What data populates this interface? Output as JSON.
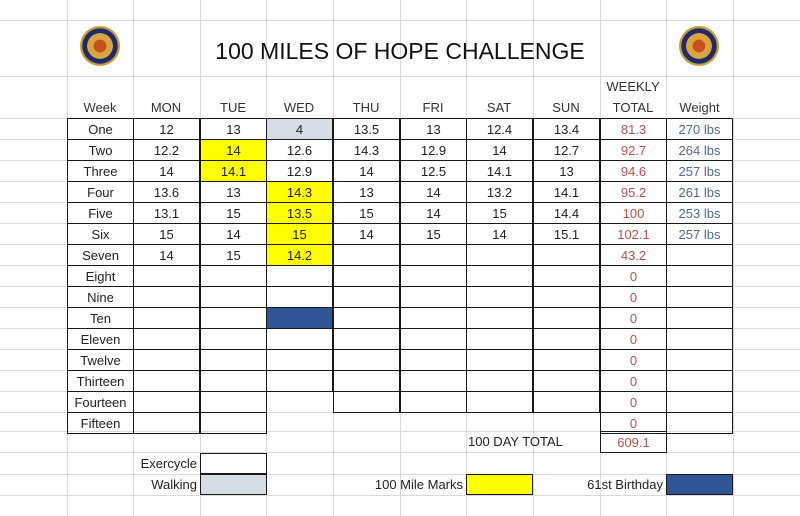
{
  "title": "100 MILES OF HOPE CHALLENGE",
  "logos": [
    "american-legion-emblem-left",
    "american-legion-emblem-right"
  ],
  "headers": {
    "week": "Week",
    "days": [
      "MON",
      "TUE",
      "WED",
      "THU",
      "FRI",
      "SAT",
      "SUN"
    ],
    "weekly_line1": "WEEKLY",
    "weekly_line2": "TOTAL",
    "weight": "Weight"
  },
  "rows": [
    {
      "week": "One",
      "days": [
        "12",
        "13",
        "4",
        "13.5",
        "13",
        "12.4",
        "13.4"
      ],
      "total": "81.3",
      "weight": "270 lbs"
    },
    {
      "week": "Two",
      "days": [
        "12.2",
        "14",
        "12.6",
        "14.3",
        "12.9",
        "14",
        "12.7"
      ],
      "total": "92.7",
      "weight": "264 lbs"
    },
    {
      "week": "Three",
      "days": [
        "14",
        "14.1",
        "12.9",
        "14",
        "12.5",
        "14.1",
        "13"
      ],
      "total": "94.6",
      "weight": "257 lbs"
    },
    {
      "week": "Four",
      "days": [
        "13.6",
        "13",
        "14.3",
        "13",
        "14",
        "13.2",
        "14.1"
      ],
      "total": "95.2",
      "weight": "261 lbs"
    },
    {
      "week": "Five",
      "days": [
        "13.1",
        "15",
        "13.5",
        "15",
        "14",
        "15",
        "14.4"
      ],
      "total": "100",
      "weight": "253 lbs"
    },
    {
      "week": "Six",
      "days": [
        "15",
        "14",
        "15",
        "14",
        "15",
        "14",
        "15.1"
      ],
      "total": "102.1",
      "weight": "257 lbs"
    },
    {
      "week": "Seven",
      "days": [
        "14",
        "15",
        "14.2",
        "",
        "",
        "",
        ""
      ],
      "total": "43.2",
      "weight": ""
    },
    {
      "week": "Eight",
      "days": [
        "",
        "",
        "",
        "",
        "",
        "",
        ""
      ],
      "total": "0",
      "weight": ""
    },
    {
      "week": "Nine",
      "days": [
        "",
        "",
        "",
        "",
        "",
        "",
        ""
      ],
      "total": "0",
      "weight": ""
    },
    {
      "week": "Ten",
      "days": [
        "",
        "",
        "",
        "",
        "",
        "",
        ""
      ],
      "total": "0",
      "weight": ""
    },
    {
      "week": "Eleven",
      "days": [
        "",
        "",
        "",
        "",
        "",
        "",
        ""
      ],
      "total": "0",
      "weight": ""
    },
    {
      "week": "Twelve",
      "days": [
        "",
        "",
        "",
        "",
        "",
        "",
        ""
      ],
      "total": "0",
      "weight": ""
    },
    {
      "week": "Thirteen",
      "days": [
        "",
        "",
        "",
        "",
        "",
        "",
        ""
      ],
      "total": "0",
      "weight": ""
    },
    {
      "week": "Fourteen",
      "days": [
        "",
        "",
        "",
        "",
        "",
        "",
        ""
      ],
      "total": "0",
      "weight": ""
    },
    {
      "week": "Fifteen",
      "days": [
        "",
        "",
        "",
        "",
        "",
        "",
        ""
      ],
      "total": "0",
      "weight": ""
    }
  ],
  "highlights": {
    "walking_gray": [
      [
        0,
        2
      ]
    ],
    "mile_marks_yellow": [
      [
        1,
        1
      ],
      [
        2,
        1
      ],
      [
        3,
        2
      ],
      [
        4,
        2
      ],
      [
        5,
        2
      ],
      [
        6,
        2
      ]
    ],
    "birthday_navy": [
      [
        9,
        2
      ]
    ]
  },
  "grand_total_label": "100 DAY TOTAL",
  "grand_total_value": "609.1",
  "legend": {
    "exercycle": "Exercycle",
    "walking": "Walking",
    "mile_marks": "100 Mile Marks",
    "birthday": "61st Birthday"
  },
  "colors": {
    "total_text": "#c0504d",
    "weight_text": "#4f6b9a",
    "mile_mark": "#ffff00",
    "walking": "#d6dce4",
    "birthday": "#2f5597"
  }
}
